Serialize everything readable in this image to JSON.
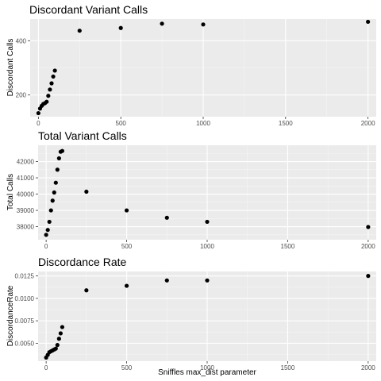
{
  "chart_data": [
    {
      "type": "scatter",
      "title": "Discordant Variant Calls",
      "xlabel": "",
      "ylabel": "Discordant Calls",
      "xlim": [
        -50,
        2050
      ],
      "ylim": [
        120,
        480
      ],
      "xticks": [
        "0",
        "500",
        "1000",
        "1500",
        "2000"
      ],
      "xtick_values": [
        0,
        500,
        1000,
        1500,
        2000
      ],
      "yticks": [
        "200",
        "400"
      ],
      "ytick_values": [
        200,
        400
      ],
      "x": [
        0,
        10,
        20,
        30,
        40,
        50,
        60,
        70,
        80,
        90,
        100,
        250,
        500,
        750,
        1000,
        2000
      ],
      "y": [
        133,
        150,
        160,
        167,
        170,
        175,
        197,
        220,
        243,
        268,
        290,
        437,
        447,
        463,
        460,
        470
      ],
      "grid": true
    },
    {
      "type": "scatter",
      "title": "Total Variant Calls",
      "xlabel": "",
      "ylabel": "Total Calls",
      "xlim": [
        -50,
        2050
      ],
      "ylim": [
        37200,
        43000
      ],
      "xticks": [
        "0",
        "500",
        "1000",
        "1500",
        "2000"
      ],
      "xtick_values": [
        0,
        500,
        1000,
        1500,
        2000
      ],
      "yticks": [
        "38000",
        "39000",
        "40000",
        "41000",
        "42000"
      ],
      "ytick_values": [
        38000,
        39000,
        40000,
        41000,
        42000
      ],
      "x": [
        0,
        10,
        20,
        30,
        40,
        50,
        60,
        70,
        80,
        90,
        100,
        250,
        500,
        750,
        1000,
        2000
      ],
      "y": [
        37500,
        37800,
        38300,
        39000,
        39600,
        40100,
        40700,
        41500,
        42200,
        42600,
        42650,
        40150,
        39000,
        38550,
        38300,
        37980
      ],
      "grid": true
    },
    {
      "type": "scatter",
      "title": "Discordance Rate",
      "xlabel": "Sniffles max_dist parameter",
      "ylabel": "DiscordanceRate",
      "xlim": [
        -50,
        2050
      ],
      "ylim": [
        0.003,
        0.013
      ],
      "xticks": [
        "0",
        "500",
        "1000",
        "1500",
        "2000"
      ],
      "xtick_values": [
        0,
        500,
        1000,
        1500,
        2000
      ],
      "yticks": [
        "0.0050",
        "0.0075",
        "0.0100",
        "0.0125"
      ],
      "ytick_values": [
        0.005,
        0.0075,
        0.01,
        0.0125
      ],
      "x": [
        0,
        10,
        20,
        30,
        40,
        50,
        60,
        70,
        80,
        90,
        100,
        250,
        500,
        750,
        1000,
        2000
      ],
      "y": [
        0.0034,
        0.0037,
        0.004,
        0.0041,
        0.0042,
        0.0043,
        0.0044,
        0.0048,
        0.0055,
        0.0061,
        0.0068,
        0.0109,
        0.0114,
        0.012,
        0.012,
        0.0125
      ],
      "grid": true
    }
  ]
}
